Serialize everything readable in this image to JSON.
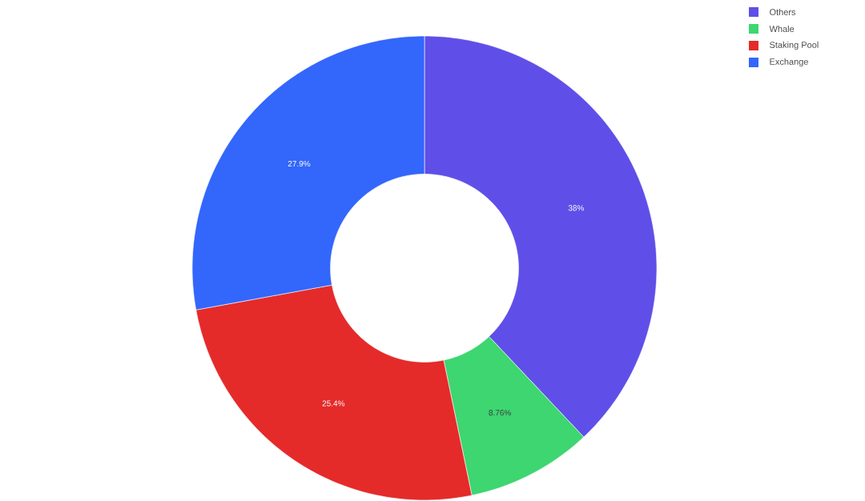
{
  "chart_data": {
    "type": "donut",
    "categories": [
      "Others",
      "Whale",
      "Staking Pool",
      "Exchange"
    ],
    "values": [
      38,
      8.76,
      25.4,
      27.9
    ],
    "value_labels": [
      "38%",
      "8.76%",
      "25.4%",
      "27.9%"
    ],
    "colors": [
      "#5f4fe8",
      "#3dd670",
      "#e52a2a",
      "#3366fb"
    ],
    "legend": "top right"
  }
}
